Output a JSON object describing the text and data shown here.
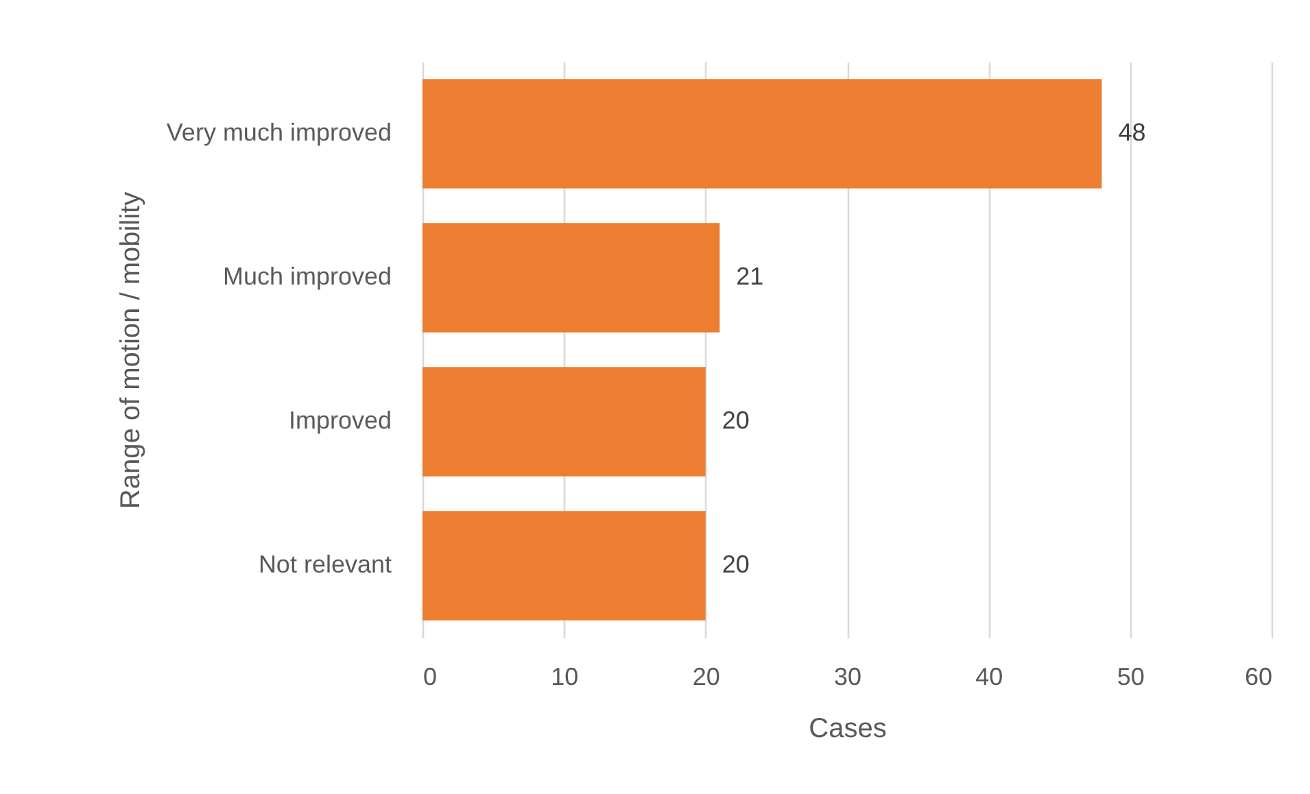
{
  "chart_data": {
    "type": "bar",
    "orientation": "horizontal",
    "xlabel": "Cases",
    "ylabel": "Range of motion / mobility",
    "categories": [
      "Very much improved",
      "Much improved",
      "Improved",
      "Not relevant"
    ],
    "values": [
      48,
      21,
      20,
      20
    ],
    "color": "#ed7d31",
    "xlim": [
      0,
      60
    ],
    "xticks": [
      0,
      10,
      20,
      30,
      40,
      50,
      60
    ],
    "grid": "x",
    "data_labels": true
  }
}
